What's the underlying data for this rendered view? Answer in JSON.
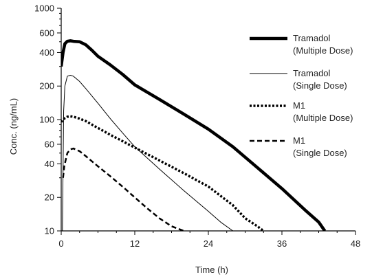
{
  "chart_data": {
    "type": "line",
    "xlabel": "Time (h)",
    "ylabel": "Conc. (ng/mL)",
    "xlim": [
      0,
      48
    ],
    "ylim": [
      10,
      1000
    ],
    "yscale": "log",
    "grid": false,
    "legend_position": "right",
    "x_ticks": [
      0,
      12,
      24,
      36,
      48
    ],
    "x_tick_labels": [
      "0",
      "12",
      "24",
      "36",
      "48"
    ],
    "y_ticks": [
      10,
      20,
      40,
      60,
      100,
      200,
      400,
      600,
      1000
    ],
    "y_tick_labels": [
      "10",
      "20",
      "40",
      "60",
      "100",
      "200",
      "400",
      "600",
      "1000"
    ],
    "series": [
      {
        "legend": [
          "Tramadol",
          "(Multiple Dose)"
        ],
        "style": "thick-solid",
        "x": [
          0,
          0.3,
          0.6,
          1,
          1.5,
          2,
          3,
          4,
          5,
          6,
          8,
          10,
          12,
          16,
          20,
          24,
          28,
          32,
          36,
          40,
          42,
          43
        ],
        "y": [
          300,
          400,
          480,
          505,
          510,
          505,
          500,
          470,
          420,
          370,
          310,
          255,
          205,
          152,
          112,
          82,
          57,
          37,
          24,
          15,
          12,
          10
        ]
      },
      {
        "legend": [
          "Tramadol",
          "(Single Dose)"
        ],
        "style": "thin-solid",
        "x": [
          0.2,
          0.4,
          0.6,
          1,
          1.5,
          2,
          3,
          4,
          6,
          8,
          10,
          12,
          16,
          20,
          24,
          26,
          28
        ],
        "y": [
          10,
          120,
          200,
          245,
          250,
          245,
          220,
          190,
          140,
          102,
          76,
          57,
          36,
          23,
          15,
          12,
          10
        ]
      },
      {
        "legend": [
          "M1",
          "(Multiple Dose)"
        ],
        "style": "dotted",
        "x": [
          0,
          0.3,
          0.6,
          1,
          1.5,
          2,
          3,
          4,
          6,
          8,
          10,
          12,
          16,
          20,
          24,
          28,
          30,
          32,
          33
        ],
        "y": [
          95,
          100,
          103,
          106,
          107,
          106,
          102,
          97,
          84,
          73,
          64,
          56,
          43,
          33,
          25,
          17,
          13,
          11,
          10
        ]
      },
      {
        "legend": [
          "M1",
          "(Single Dose)"
        ],
        "style": "dashed",
        "x": [
          0.3,
          0.5,
          0.8,
          1,
          1.5,
          2,
          3,
          4,
          6,
          8,
          10,
          12,
          14,
          16,
          18,
          20
        ],
        "y": [
          30,
          38,
          45,
          50,
          54,
          55,
          52,
          47,
          38,
          31,
          25,
          20,
          16,
          13,
          11,
          10
        ]
      }
    ]
  }
}
